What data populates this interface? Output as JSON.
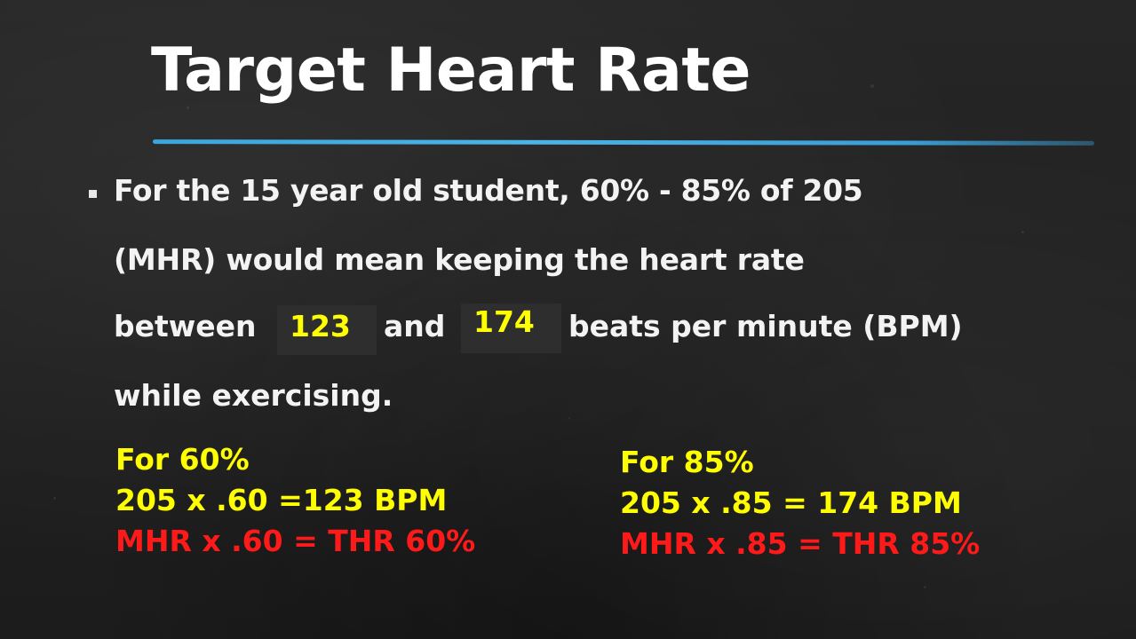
{
  "title": "Target Heart Rate",
  "bullet": {
    "line1": "For the 15 year old student, 60% - 85% of 205",
    "line2": "(MHR) would mean keeping the heart rate",
    "line3_a": "between",
    "answer1": "123",
    "line3_b": "and",
    "answer2": "174",
    "line3_c": "beats per minute (BPM)",
    "line4": "while exercising."
  },
  "calc_left": {
    "heading": "For 60%",
    "equation": "205 x .60 =123 BPM",
    "formula": "MHR x .60 = THR 60%"
  },
  "calc_right": {
    "heading": "For 85%",
    "equation": "205 x .85 = 174 BPM",
    "formula": "MHR x .85 = THR 85%"
  },
  "colors": {
    "title": "#ffffff",
    "rule": "#3aa6dc",
    "answer": "#ffff00",
    "formula": "#ff1a1a"
  }
}
